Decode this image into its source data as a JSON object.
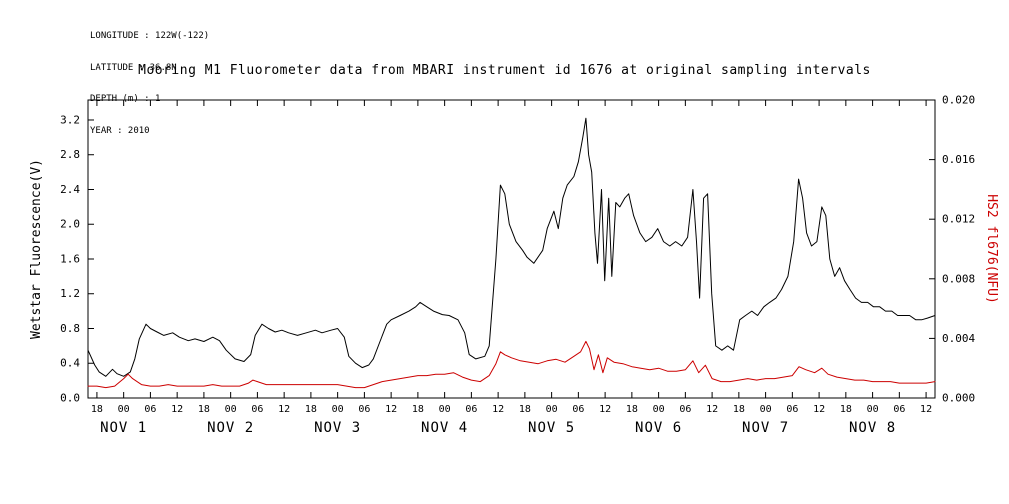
{
  "meta": {
    "longitude": "LONGITUDE : 122W(-122)",
    "latitude": "LATITUDE : 36.8N",
    "depth": "DEPTH (m) : 1",
    "year": "YEAR : 2010"
  },
  "chart_data": {
    "type": "line",
    "title": "Mooring M1 Fluorometer data from MBARI instrument id 1676 at original sampling intervals",
    "grid": false,
    "legend": "none",
    "background_color": "#ffffff",
    "x_axis": {
      "description": "Time, Nov 1 - Nov 8 2010, hours since axis start (Oct 31 16:00)",
      "range_hours": [
        0,
        190
      ],
      "first_tick_hour": 2,
      "tick_interval_hours": 6,
      "tick_labels": [
        "18",
        "00",
        "06",
        "12",
        "18",
        "00",
        "06",
        "12",
        "18",
        "00",
        "06",
        "12",
        "18",
        "00",
        "06",
        "12",
        "18",
        "00",
        "06",
        "12",
        "18",
        "00",
        "06",
        "12",
        "18",
        "00",
        "06",
        "12",
        "18",
        "00",
        "06",
        "12"
      ],
      "day_labels": [
        {
          "hour": 8,
          "label": "NOV  1"
        },
        {
          "hour": 32,
          "label": "NOV  2"
        },
        {
          "hour": 56,
          "label": "NOV  3"
        },
        {
          "hour": 80,
          "label": "NOV  4"
        },
        {
          "hour": 104,
          "label": "NOV  5"
        },
        {
          "hour": 128,
          "label": "NOV  6"
        },
        {
          "hour": 152,
          "label": "NOV  7"
        },
        {
          "hour": 176,
          "label": "NOV  8"
        }
      ]
    },
    "y_left": {
      "label": "Wetstar Fluorescence(V)",
      "range": [
        0,
        3.43
      ],
      "ticks": [
        0.0,
        0.4,
        0.8,
        1.2,
        1.6,
        2.0,
        2.4,
        2.8,
        3.2
      ],
      "tick_labels": [
        "0.0",
        "0.4",
        "0.8",
        "1.2",
        "1.6",
        "2.0",
        "2.4",
        "2.8",
        "3.2"
      ],
      "color": "#000000"
    },
    "y_right": {
      "label": "HS2 fl676(NFU)",
      "range": [
        0,
        0.02
      ],
      "ticks": [
        0.0,
        0.004,
        0.008,
        0.012,
        0.016,
        0.02
      ],
      "tick_labels": [
        "0.000",
        "0.004",
        "0.008",
        "0.012",
        "0.016",
        "0.020"
      ],
      "color": "#cc0000"
    },
    "series": [
      {
        "id": "wetstar-fluorescence",
        "name": "Wetstar Fluorescence (V)",
        "axis": "left",
        "color": "#000000",
        "points": [
          [
            0,
            0.55
          ],
          [
            1.5,
            0.38
          ],
          [
            2.5,
            0.3
          ],
          [
            4,
            0.25
          ],
          [
            5.5,
            0.33
          ],
          [
            6.5,
            0.28
          ],
          [
            8,
            0.25
          ],
          [
            9.5,
            0.3
          ],
          [
            10.5,
            0.45
          ],
          [
            11.5,
            0.68
          ],
          [
            13,
            0.85
          ],
          [
            14,
            0.8
          ],
          [
            15.5,
            0.76
          ],
          [
            17,
            0.72
          ],
          [
            19,
            0.75
          ],
          [
            20.5,
            0.7
          ],
          [
            22.5,
            0.66
          ],
          [
            24,
            0.68
          ],
          [
            26,
            0.65
          ],
          [
            28,
            0.7
          ],
          [
            29.5,
            0.66
          ],
          [
            31,
            0.55
          ],
          [
            33,
            0.45
          ],
          [
            35,
            0.42
          ],
          [
            36.5,
            0.5
          ],
          [
            37.5,
            0.72
          ],
          [
            39,
            0.85
          ],
          [
            40.5,
            0.8
          ],
          [
            42,
            0.76
          ],
          [
            43.5,
            0.78
          ],
          [
            45,
            0.75
          ],
          [
            47,
            0.72
          ],
          [
            49,
            0.75
          ],
          [
            51,
            0.78
          ],
          [
            52.5,
            0.75
          ],
          [
            54.5,
            0.78
          ],
          [
            56,
            0.8
          ],
          [
            57.5,
            0.7
          ],
          [
            58.5,
            0.48
          ],
          [
            60,
            0.4
          ],
          [
            61.5,
            0.35
          ],
          [
            63,
            0.38
          ],
          [
            64,
            0.45
          ],
          [
            65.5,
            0.65
          ],
          [
            67,
            0.85
          ],
          [
            68,
            0.9
          ],
          [
            70,
            0.95
          ],
          [
            72,
            1
          ],
          [
            73.5,
            1.05
          ],
          [
            74.5,
            1.1
          ],
          [
            76,
            1.05
          ],
          [
            77.5,
            1
          ],
          [
            79.5,
            0.96
          ],
          [
            81,
            0.95
          ],
          [
            83,
            0.9
          ],
          [
            84.5,
            0.75
          ],
          [
            85.5,
            0.5
          ],
          [
            87,
            0.45
          ],
          [
            89,
            0.48
          ],
          [
            90,
            0.6
          ],
          [
            91.5,
            1.6
          ],
          [
            92.5,
            2.45
          ],
          [
            93.5,
            2.35
          ],
          [
            94.5,
            2
          ],
          [
            96,
            1.8
          ],
          [
            97.5,
            1.7
          ],
          [
            98.5,
            1.62
          ],
          [
            100,
            1.55
          ],
          [
            102,
            1.7
          ],
          [
            103,
            1.95
          ],
          [
            104.5,
            2.15
          ],
          [
            105.5,
            1.95
          ],
          [
            106.5,
            2.3
          ],
          [
            107.5,
            2.45
          ],
          [
            109,
            2.55
          ],
          [
            110,
            2.72
          ],
          [
            111,
            3
          ],
          [
            111.7,
            3.22
          ],
          [
            112.3,
            2.8
          ],
          [
            113,
            2.6
          ],
          [
            113.7,
            1.9
          ],
          [
            114.3,
            1.55
          ],
          [
            115.2,
            2.4
          ],
          [
            115.9,
            1.35
          ],
          [
            116.8,
            2.3
          ],
          [
            117.5,
            1.4
          ],
          [
            118.4,
            2.25
          ],
          [
            119.3,
            2.2
          ],
          [
            120.4,
            2.3
          ],
          [
            121.3,
            2.35
          ],
          [
            122.4,
            2.1
          ],
          [
            123.8,
            1.9
          ],
          [
            125.1,
            1.8
          ],
          [
            126.5,
            1.85
          ],
          [
            127.8,
            1.95
          ],
          [
            129.1,
            1.8
          ],
          [
            130.5,
            1.75
          ],
          [
            131.8,
            1.8
          ],
          [
            133.2,
            1.75
          ],
          [
            134.5,
            1.85
          ],
          [
            135.7,
            2.4
          ],
          [
            136.5,
            1.8
          ],
          [
            137.2,
            1.15
          ],
          [
            138.1,
            2.3
          ],
          [
            139,
            2.35
          ],
          [
            139.9,
            1.2
          ],
          [
            140.8,
            0.6
          ],
          [
            142.2,
            0.55
          ],
          [
            143.5,
            0.6
          ],
          [
            144.8,
            0.55
          ],
          [
            146.2,
            0.9
          ],
          [
            147.5,
            0.95
          ],
          [
            148.9,
            1
          ],
          [
            150.2,
            0.95
          ],
          [
            151.6,
            1.05
          ],
          [
            152.9,
            1.1
          ],
          [
            154.3,
            1.15
          ],
          [
            155.6,
            1.25
          ],
          [
            157,
            1.4
          ],
          [
            158.3,
            1.8
          ],
          [
            159.4,
            2.52
          ],
          [
            160.3,
            2.3
          ],
          [
            161.2,
            1.9
          ],
          [
            162.3,
            1.75
          ],
          [
            163.5,
            1.8
          ],
          [
            164.6,
            2.2
          ],
          [
            165.5,
            2.1
          ],
          [
            166.4,
            1.6
          ],
          [
            167.5,
            1.4
          ],
          [
            168.6,
            1.5
          ],
          [
            169.7,
            1.35
          ],
          [
            170.9,
            1.25
          ],
          [
            172.2,
            1.15
          ],
          [
            173.5,
            1.1
          ],
          [
            174.9,
            1.1
          ],
          [
            176.2,
            1.05
          ],
          [
            177.6,
            1.05
          ],
          [
            178.9,
            1
          ],
          [
            180.3,
            1
          ],
          [
            181.6,
            0.95
          ],
          [
            183,
            0.95
          ],
          [
            184.3,
            0.95
          ],
          [
            185.7,
            0.9
          ],
          [
            187,
            0.9
          ],
          [
            188.3,
            0.92
          ],
          [
            190,
            0.95
          ]
        ]
      },
      {
        "id": "hs2-fl676",
        "name": "HS2 fl676 (NFU)",
        "axis": "right",
        "color": "#cc0000",
        "points": [
          [
            0,
            0.0008
          ],
          [
            2,
            0.0008
          ],
          [
            4,
            0.0007
          ],
          [
            6,
            0.0008
          ],
          [
            8,
            0.0013
          ],
          [
            9,
            0.0016
          ],
          [
            10,
            0.0013
          ],
          [
            12,
            0.0009
          ],
          [
            14,
            0.0008
          ],
          [
            16,
            0.0008
          ],
          [
            18,
            0.0009
          ],
          [
            20,
            0.0008
          ],
          [
            22,
            0.0008
          ],
          [
            24,
            0.0008
          ],
          [
            26,
            0.0008
          ],
          [
            28,
            0.0009
          ],
          [
            30,
            0.0008
          ],
          [
            32,
            0.0008
          ],
          [
            34,
            0.0008
          ],
          [
            36,
            0.001
          ],
          [
            37,
            0.0012
          ],
          [
            38,
            0.0011
          ],
          [
            40,
            0.0009
          ],
          [
            42,
            0.0009
          ],
          [
            44,
            0.0009
          ],
          [
            46,
            0.0009
          ],
          [
            48,
            0.0009
          ],
          [
            50,
            0.0009
          ],
          [
            52,
            0.0009
          ],
          [
            54,
            0.0009
          ],
          [
            56,
            0.0009
          ],
          [
            58,
            0.0008
          ],
          [
            60,
            0.0007
          ],
          [
            62,
            0.0007
          ],
          [
            64,
            0.0009
          ],
          [
            66,
            0.0011
          ],
          [
            68,
            0.0012
          ],
          [
            70,
            0.0013
          ],
          [
            72,
            0.0014
          ],
          [
            74,
            0.0015
          ],
          [
            76,
            0.0015
          ],
          [
            78,
            0.0016
          ],
          [
            80,
            0.0016
          ],
          [
            82,
            0.0017
          ],
          [
            84,
            0.0014
          ],
          [
            86,
            0.0012
          ],
          [
            88,
            0.0011
          ],
          [
            90,
            0.0015
          ],
          [
            91.5,
            0.0023
          ],
          [
            92.5,
            0.0031
          ],
          [
            93.5,
            0.0029
          ],
          [
            95,
            0.0027
          ],
          [
            97,
            0.0025
          ],
          [
            99,
            0.0024
          ],
          [
            101,
            0.0023
          ],
          [
            103,
            0.0025
          ],
          [
            105,
            0.0026
          ],
          [
            107,
            0.0024
          ],
          [
            109,
            0.0028
          ],
          [
            110.5,
            0.0031
          ],
          [
            111.7,
            0.0038
          ],
          [
            112.5,
            0.0033
          ],
          [
            113.5,
            0.0019
          ],
          [
            114.5,
            0.0029
          ],
          [
            115.5,
            0.0017
          ],
          [
            116.5,
            0.0027
          ],
          [
            118,
            0.0024
          ],
          [
            120,
            0.0023
          ],
          [
            122,
            0.0021
          ],
          [
            124,
            0.002
          ],
          [
            126,
            0.0019
          ],
          [
            128,
            0.002
          ],
          [
            130,
            0.0018
          ],
          [
            132,
            0.0018
          ],
          [
            134,
            0.0019
          ],
          [
            135.7,
            0.0025
          ],
          [
            137,
            0.0017
          ],
          [
            138.5,
            0.0022
          ],
          [
            140,
            0.0013
          ],
          [
            142,
            0.0011
          ],
          [
            144,
            0.0011
          ],
          [
            146,
            0.0012
          ],
          [
            148,
            0.0013
          ],
          [
            150,
            0.0012
          ],
          [
            152,
            0.0013
          ],
          [
            154,
            0.0013
          ],
          [
            156,
            0.0014
          ],
          [
            158,
            0.0015
          ],
          [
            159.5,
            0.0021
          ],
          [
            161,
            0.0019
          ],
          [
            163,
            0.0017
          ],
          [
            164.6,
            0.002
          ],
          [
            166,
            0.0016
          ],
          [
            168,
            0.0014
          ],
          [
            170,
            0.0013
          ],
          [
            172,
            0.0012
          ],
          [
            174,
            0.0012
          ],
          [
            176,
            0.0011
          ],
          [
            178,
            0.0011
          ],
          [
            180,
            0.0011
          ],
          [
            182,
            0.001
          ],
          [
            184,
            0.001
          ],
          [
            186,
            0.001
          ],
          [
            188,
            0.001
          ],
          [
            190,
            0.0011
          ]
        ]
      }
    ]
  }
}
